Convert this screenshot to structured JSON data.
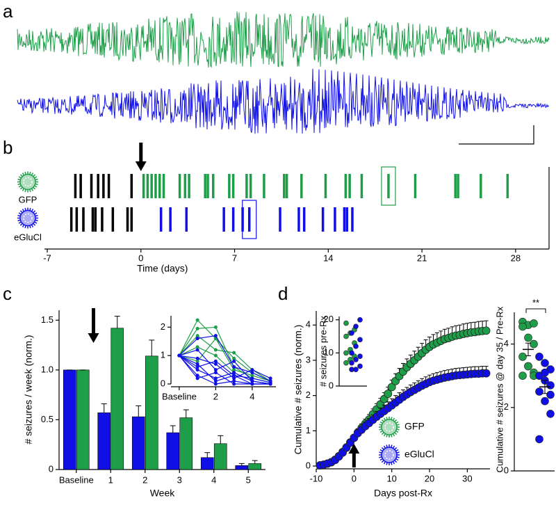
{
  "chart_data": [
    {
      "type": "trace",
      "panel": "a",
      "series": [
        {
          "color": "#1f9e49"
        },
        {
          "color": "#1010e6"
        }
      ]
    },
    {
      "type": "raster",
      "panel": "b",
      "xlabel": "Time (days)",
      "xlim": [
        -7,
        30.5
      ],
      "xticks": [
        -7,
        0,
        7,
        14,
        21,
        28
      ],
      "baseline_color": "#000000",
      "rx_day": 0,
      "series": [
        {
          "name": "GFP",
          "color": "#1f9e49",
          "highlight": 31,
          "values": [
            -4.9,
            -4.5,
            -3.7,
            -3.2,
            -2.8,
            -2.4,
            -0.7,
            0.2,
            0.5,
            0.8,
            1.1,
            1.4,
            1.7,
            2.9,
            3.3,
            3.6,
            4.8,
            5.0,
            5.4,
            6.6,
            6.9,
            7.9,
            8.2,
            9.2,
            10.7,
            10.9,
            12.0,
            13.8,
            15.3,
            15.6,
            16.5,
            18.5,
            20.5,
            23.5,
            23.7,
            25.4,
            27.4
          ]
        },
        {
          "name": "eGluCl",
          "color": "#1010e6",
          "highlight": 15,
          "values": [
            -5.2,
            -4.8,
            -4.3,
            -3.6,
            -3.4,
            -2.9,
            -2.1,
            -1.0,
            -0.7,
            1.5,
            2.2,
            3.4,
            6.2,
            6.9,
            7.6,
            8.1,
            10.4,
            11.8,
            12.2,
            13.6,
            14.5,
            15.2,
            15.4,
            15.8
          ]
        }
      ]
    },
    {
      "type": "bar",
      "panel": "c",
      "xlabel": "Week",
      "ylabel": "# seizures / week (norm.)",
      "categories": [
        "Baseline",
        "1",
        "2",
        "3",
        "4",
        "5"
      ],
      "ylim": [
        0,
        1.6
      ],
      "yticks": [
        0,
        0.5,
        {
          "value": 1,
          "label": "1.0"
        },
        1.5
      ],
      "series": [
        {
          "color": "#1010e6",
          "values": [
            1,
            0.57,
            0.53,
            0.37,
            0.12,
            0.04
          ],
          "errors": [
            0,
            0.09,
            0.11,
            0.07,
            0.05,
            0.02
          ]
        },
        {
          "color": "#1f9e49",
          "values": [
            1,
            1.42,
            1.14,
            0.52,
            0.26,
            0.06
          ],
          "errors": [
            0,
            0.12,
            0.16,
            0.08,
            0.08,
            0.03
          ]
        }
      ]
    },
    {
      "type": "line",
      "x": [
        0,
        1,
        2,
        3,
        4,
        5
      ],
      "xlim": [
        -0.3,
        5.3
      ],
      "xticks": [
        {
          "value": 0,
          "label": "Baseline"
        },
        2,
        4
      ],
      "ylim": [
        0,
        2.4
      ],
      "yticks": [
        0,
        1,
        2
      ],
      "series": [
        {
          "color": "#1f9e49",
          "values": [
            1,
            2.25,
            1.6,
            0.9,
            0.4,
            0.1
          ]
        },
        {
          "color": "#1f9e49",
          "values": [
            1,
            1.95,
            2.0,
            0.6,
            0.2,
            0.05
          ]
        },
        {
          "color": "#1f9e49",
          "values": [
            1,
            1.7,
            1.2,
            1.1,
            0.5,
            0.1
          ]
        },
        {
          "color": "#1f9e49",
          "values": [
            1,
            1.3,
            1.0,
            0.4,
            0.1,
            0
          ]
        },
        {
          "color": "#1f9e49",
          "values": [
            1,
            0.8,
            1.6,
            0.5,
            0.3,
            0.1
          ]
        },
        {
          "color": "#1010e6",
          "values": [
            1,
            1.6,
            1.7,
            0.6,
            0.4,
            0.1
          ]
        },
        {
          "color": "#1010e6",
          "values": [
            1,
            1.2,
            0.5,
            0.8,
            0.1,
            0
          ]
        },
        {
          "color": "#1010e6",
          "values": [
            1,
            0.9,
            0.7,
            0.2,
            0.5,
            0.2
          ]
        },
        {
          "color": "#1010e6",
          "values": [
            1,
            0.6,
            0.8,
            0.3,
            0,
            0
          ]
        },
        {
          "color": "#1010e6",
          "values": [
            1,
            0.5,
            0.2,
            0.4,
            0.1,
            0
          ]
        },
        {
          "color": "#1010e6",
          "values": [
            1,
            0.3,
            0,
            0.1,
            0,
            0
          ]
        },
        {
          "color": "#1010e6",
          "values": [
            1,
            0.2,
            0.4,
            0,
            0,
            0
          ]
        },
        {
          "color": "#1010e6",
          "values": [
            1,
            0.7,
            0.1,
            0.3,
            0.2,
            0.05
          ]
        }
      ]
    },
    {
      "type": "cumulative",
      "panel": "d",
      "xlabel": "Days post-Rx",
      "ylabel": "Cumulative # seizures (norm.)",
      "rx_day": 0,
      "xlim": [
        -10,
        36
      ],
      "xticks": [
        -10,
        0,
        10,
        20,
        30
      ],
      "ylim": [
        0,
        4.4
      ],
      "yticks": [
        0,
        1,
        2,
        3,
        4
      ],
      "x": [
        -9,
        -8,
        -7,
        -6,
        -5,
        -4,
        -3,
        -2,
        -1,
        0,
        1,
        2,
        3,
        4,
        5,
        6,
        7,
        8,
        9,
        10,
        11,
        12,
        13,
        14,
        15,
        16,
        17,
        18,
        19,
        20,
        21,
        22,
        23,
        24,
        25,
        26,
        27,
        28,
        29,
        30,
        31,
        32,
        33,
        34,
        35
      ],
      "series": [
        {
          "name": "GFP",
          "color": "#1f9e49",
          "values": [
            0.02,
            0.04,
            0.07,
            0.11,
            0.18,
            0.28,
            0.4,
            0.53,
            0.67,
            0.8,
            0.95,
            1.08,
            1.2,
            1.32,
            1.47,
            1.61,
            1.75,
            1.9,
            2.05,
            2.24,
            2.41,
            2.55,
            2.68,
            2.8,
            2.9,
            3.0,
            3.1,
            3.2,
            3.3,
            3.38,
            3.45,
            3.5,
            3.55,
            3.6,
            3.63,
            3.67,
            3.7,
            3.72,
            3.75,
            3.77,
            3.79,
            3.8,
            3.82,
            3.83,
            3.84
          ],
          "errors": [
            0.01,
            0.02,
            0.03,
            0.04,
            0.05,
            0.06,
            0.07,
            0.08,
            0.09,
            0.1,
            0.11,
            0.12,
            0.13,
            0.14,
            0.15,
            0.16,
            0.17,
            0.18,
            0.19,
            0.2,
            0.21,
            0.22,
            0.23,
            0.24,
            0.25,
            0.26,
            0.27,
            0.28,
            0.28,
            0.28,
            0.28,
            0.28,
            0.28,
            0.28,
            0.28,
            0.28,
            0.28,
            0.28,
            0.28,
            0.28,
            0.28,
            0.28,
            0.28,
            0.28,
            0.28
          ]
        },
        {
          "name": "eGluCl",
          "color": "#1010e6",
          "values": [
            0.02,
            0.04,
            0.07,
            0.11,
            0.17,
            0.27,
            0.38,
            0.52,
            0.66,
            0.8,
            0.93,
            1.03,
            1.13,
            1.22,
            1.31,
            1.4,
            1.48,
            1.56,
            1.64,
            1.72,
            1.8,
            1.88,
            1.96,
            2.03,
            2.1,
            2.16,
            2.22,
            2.28,
            2.33,
            2.38,
            2.42,
            2.45,
            2.48,
            2.51,
            2.53,
            2.55,
            2.57,
            2.58,
            2.59,
            2.6,
            2.61,
            2.62,
            2.62,
            2.63,
            2.63
          ],
          "errors": [
            0.01,
            0.02,
            0.03,
            0.04,
            0.05,
            0.06,
            0.07,
            0.08,
            0.09,
            0.1,
            0.1,
            0.11,
            0.12,
            0.13,
            0.14,
            0.15,
            0.16,
            0.17,
            0.18,
            0.19,
            0.2,
            0.2,
            0.2,
            0.2,
            0.2,
            0.2,
            0.2,
            0.2,
            0.2,
            0.2,
            0.2,
            0.2,
            0.2,
            0.2,
            0.2,
            0.2,
            0.2,
            0.2,
            0.2,
            0.2,
            0.2,
            0.2,
            0.2,
            0.2,
            0.2
          ]
        }
      ]
    },
    {
      "type": "strip",
      "ylabel": "# seizures pre-Rx",
      "ylim": [
        0,
        21
      ],
      "yticks": [
        0,
        10,
        20
      ],
      "series": [
        {
          "color": "#1f9e49",
          "values": [
            7,
            8,
            9,
            10,
            11,
            13,
            15,
            16,
            17,
            19
          ]
        },
        {
          "color": "#1010e6",
          "values": [
            5,
            5,
            6,
            7,
            8,
            9,
            10,
            12,
            14,
            16,
            18,
            20
          ]
        }
      ]
    },
    {
      "type": "dot",
      "ylabel": "Cumulative # seizures @ day 35 / Pre-Rx",
      "annotation": "**",
      "ylim": [
        0,
        5
      ],
      "yticks": [
        0,
        2,
        4
      ],
      "series": [
        {
          "color": "#1f9e49",
          "values": [
            4.7,
            4.6,
            4.65,
            4.55,
            4.2,
            4.0,
            3.6,
            3.3,
            3.1,
            3.0,
            3.3,
            3.0
          ],
          "mean": 3.83,
          "sem": 0.2
        },
        {
          "color": "#1010e6",
          "values": [
            3.6,
            3.4,
            3.2,
            3.0,
            2.85,
            2.7,
            2.5,
            2.2,
            1.8,
            1.0,
            3.1,
            2.4
          ],
          "mean": 2.65,
          "sem": 0.21
        }
      ]
    }
  ]
}
